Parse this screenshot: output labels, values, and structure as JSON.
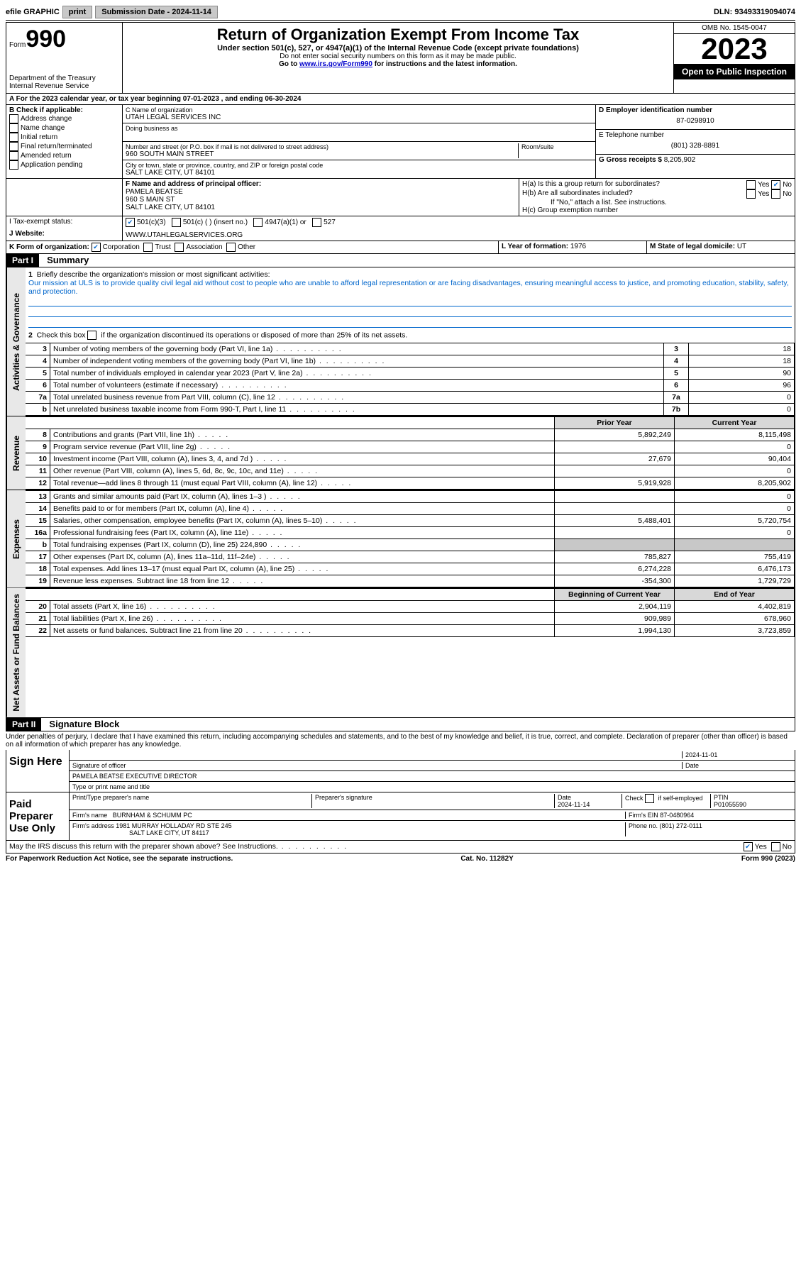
{
  "topbar": {
    "efile": "efile GRAPHIC",
    "print": "print",
    "submission_label": "Submission Date - 2024-11-14",
    "dln_label": "DLN: 93493319094074"
  },
  "header": {
    "form_label": "Form",
    "form_number": "990",
    "dept": "Department of the Treasury\nInternal Revenue Service",
    "title": "Return of Organization Exempt From Income Tax",
    "sub1": "Under section 501(c), 527, or 4947(a)(1) of the Internal Revenue Code (except private foundations)",
    "sub2": "Do not enter social security numbers on this form as it may be made public.",
    "sub3_pre": "Go to ",
    "sub3_link": "www.irs.gov/Form990",
    "sub3_post": " for instructions and the latest information.",
    "omb": "OMB No. 1545-0047",
    "year": "2023",
    "open": "Open to Public Inspection"
  },
  "rowA": {
    "text_pre": "A For the 2023 calendar year, or tax year beginning ",
    "begin": "07-01-2023",
    "mid": " , and ending ",
    "end": "06-30-2024"
  },
  "boxB": {
    "label": "B Check if applicable:",
    "items": [
      "Address change",
      "Name change",
      "Initial return",
      "Final return/terminated",
      "Amended return",
      "Application pending"
    ]
  },
  "boxC": {
    "name_label": "C Name of organization",
    "name": "UTAH LEGAL SERVICES INC",
    "dba_label": "Doing business as",
    "addr_label": "Number and street (or P.O. box if mail is not delivered to street address)",
    "addr": "960 SOUTH MAIN STREET",
    "room_label": "Room/suite",
    "city_label": "City or town, state or province, country, and ZIP or foreign postal code",
    "city": "SALT LAKE CITY, UT  84101"
  },
  "boxD": {
    "label": "D Employer identification number",
    "value": "87-0298910",
    "e_label": "E Telephone number",
    "e_value": "(801) 328-8891",
    "g_label": "G Gross receipts $",
    "g_value": "8,205,902"
  },
  "boxF": {
    "label": "F  Name and address of principal officer:",
    "name": "PAMELA BEATSE",
    "addr1": "960 S MAIN ST",
    "addr2": "SALT LAKE CITY, UT  84101"
  },
  "boxH": {
    "a_label": "H(a)  Is this a group return for subordinates?",
    "b_label": "H(b)  Are all subordinates included?",
    "b_note": "If \"No,\" attach a list. See instructions.",
    "c_label": "H(c)  Group exemption number ",
    "yes": "Yes",
    "no": "No"
  },
  "boxI": {
    "label": "I   Tax-exempt status:",
    "opts": [
      "501(c)(3)",
      "501(c) (  ) (insert no.)",
      "4947(a)(1) or",
      "527"
    ]
  },
  "boxJ": {
    "label": "J   Website: ",
    "value": "WWW.UTAHLEGALSERVICES.ORG"
  },
  "boxK": {
    "label": "K Form of organization:",
    "opts": [
      "Corporation",
      "Trust",
      "Association",
      "Other"
    ]
  },
  "boxL": {
    "label": "L Year of formation: ",
    "value": "1976"
  },
  "boxM": {
    "label": "M State of legal domicile: ",
    "value": "UT"
  },
  "part1": {
    "header": "Part I",
    "title": "Summary",
    "vtab1": "Activities & Governance",
    "vtab2": "Revenue",
    "vtab3": "Expenses",
    "vtab4": "Net Assets or Fund Balances",
    "line1_label": "Briefly describe the organization's mission or most significant activities:",
    "line1_text": "Our mission at ULS is to provide quality civil legal aid without cost to people who are unable to afford legal representation or are facing disadvantages, ensuring meaningful access to justice, and promoting education, stability, safety, and protection.",
    "line2": "Check this box       if the organization discontinued its operations or disposed of more than 25% of its net assets.",
    "lines_gov": [
      {
        "n": "3",
        "d": "Number of voting members of the governing body (Part VI, line 1a)",
        "b": "3",
        "v": "18"
      },
      {
        "n": "4",
        "d": "Number of independent voting members of the governing body (Part VI, line 1b)",
        "b": "4",
        "v": "18"
      },
      {
        "n": "5",
        "d": "Total number of individuals employed in calendar year 2023 (Part V, line 2a)",
        "b": "5",
        "v": "90"
      },
      {
        "n": "6",
        "d": "Total number of volunteers (estimate if necessary)",
        "b": "6",
        "v": "96"
      },
      {
        "n": "7a",
        "d": "Total unrelated business revenue from Part VIII, column (C), line 12",
        "b": "7a",
        "v": "0"
      },
      {
        "n": "b",
        "d": "Net unrelated business taxable income from Form 990-T, Part I, line 11",
        "b": "7b",
        "v": "0"
      }
    ],
    "col_prior": "Prior Year",
    "col_current": "Current Year",
    "lines_rev": [
      {
        "n": "8",
        "d": "Contributions and grants (Part VIII, line 1h)",
        "p": "5,892,249",
        "c": "8,115,498"
      },
      {
        "n": "9",
        "d": "Program service revenue (Part VIII, line 2g)",
        "p": "",
        "c": "0"
      },
      {
        "n": "10",
        "d": "Investment income (Part VIII, column (A), lines 3, 4, and 7d )",
        "p": "27,679",
        "c": "90,404"
      },
      {
        "n": "11",
        "d": "Other revenue (Part VIII, column (A), lines 5, 6d, 8c, 9c, 10c, and 11e)",
        "p": "",
        "c": "0"
      },
      {
        "n": "12",
        "d": "Total revenue—add lines 8 through 11 (must equal Part VIII, column (A), line 12)",
        "p": "5,919,928",
        "c": "8,205,902"
      }
    ],
    "lines_exp": [
      {
        "n": "13",
        "d": "Grants and similar amounts paid (Part IX, column (A), lines 1–3 )",
        "p": "",
        "c": "0"
      },
      {
        "n": "14",
        "d": "Benefits paid to or for members (Part IX, column (A), line 4)",
        "p": "",
        "c": "0"
      },
      {
        "n": "15",
        "d": "Salaries, other compensation, employee benefits (Part IX, column (A), lines 5–10)",
        "p": "5,488,401",
        "c": "5,720,754"
      },
      {
        "n": "16a",
        "d": "Professional fundraising fees (Part IX, column (A), line 11e)",
        "p": "",
        "c": "0"
      },
      {
        "n": "b",
        "d": "Total fundraising expenses (Part IX, column (D), line 25) 224,890",
        "p": "shade",
        "c": "shade"
      },
      {
        "n": "17",
        "d": "Other expenses (Part IX, column (A), lines 11a–11d, 11f–24e)",
        "p": "785,827",
        "c": "755,419"
      },
      {
        "n": "18",
        "d": "Total expenses. Add lines 13–17 (must equal Part IX, column (A), line 25)",
        "p": "6,274,228",
        "c": "6,476,173"
      },
      {
        "n": "19",
        "d": "Revenue less expenses. Subtract line 18 from line 12",
        "p": "-354,300",
        "c": "1,729,729"
      }
    ],
    "col_begin": "Beginning of Current Year",
    "col_end": "End of Year",
    "lines_net": [
      {
        "n": "20",
        "d": "Total assets (Part X, line 16)",
        "p": "2,904,119",
        "c": "4,402,819"
      },
      {
        "n": "21",
        "d": "Total liabilities (Part X, line 26)",
        "p": "909,989",
        "c": "678,960"
      },
      {
        "n": "22",
        "d": "Net assets or fund balances. Subtract line 21 from line 20",
        "p": "1,994,130",
        "c": "3,723,859"
      }
    ]
  },
  "part2": {
    "header": "Part II",
    "title": "Signature Block",
    "declaration": "Under penalties of perjury, I declare that I have examined this return, including accompanying schedules and statements, and to the best of my knowledge and belief, it is true, correct, and complete. Declaration of preparer (other than officer) is based on all information of which preparer has any knowledge.",
    "sign_here": "Sign Here",
    "sig_date": "2024-11-01",
    "sig_officer_label": "Signature of officer",
    "sig_name": "PAMELA BEATSE  EXECUTIVE DIRECTOR",
    "sig_name_label": "Type or print name and title",
    "date_label": "Date",
    "paid": "Paid Preparer Use Only",
    "prep_name_label": "Print/Type preparer's name",
    "prep_sig_label": "Preparer's signature",
    "prep_date_label": "Date",
    "prep_date": "2024-11-14",
    "check_self": "Check       if self-employed",
    "ptin_label": "PTIN",
    "ptin": "P01055590",
    "firm_name_label": "Firm's name   ",
    "firm_name": "BURNHAM & SCHUMM PC",
    "firm_ein_label": "Firm's EIN  ",
    "firm_ein": "87-0480964",
    "firm_addr_label": "Firm's address ",
    "firm_addr1": "1981 MURRAY HOLLADAY RD STE 245",
    "firm_addr2": "SALT LAKE CITY, UT  84117",
    "phone_label": "Phone no. ",
    "phone": "(801) 272-0111",
    "discuss": "May the IRS discuss this return with the preparer shown above? See Instructions.",
    "yes": "Yes",
    "no": "No"
  },
  "footer": {
    "left": "For Paperwork Reduction Act Notice, see the separate instructions.",
    "center": "Cat. No. 11282Y",
    "right": "Form 990 (2023)"
  }
}
